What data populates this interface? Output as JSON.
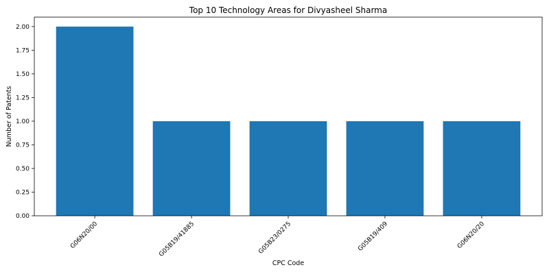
{
  "chart_data": {
    "type": "bar",
    "title": "Top 10 Technology Areas for Divyasheel Sharma",
    "xlabel": "CPC Code",
    "ylabel": "Number of Patents",
    "categories": [
      "G06N20/00",
      "G05B19/41885",
      "G05B23/0275",
      "G05B19/409",
      "G06N20/20"
    ],
    "values": [
      2,
      1,
      1,
      1,
      1
    ],
    "ylim": [
      0,
      2.1
    ],
    "yticks": [
      "0.00",
      "0.25",
      "0.50",
      "0.75",
      "1.00",
      "1.25",
      "1.50",
      "1.75",
      "2.00"
    ],
    "bar_color": "#1f77b4",
    "grid": false,
    "legend": "none"
  }
}
